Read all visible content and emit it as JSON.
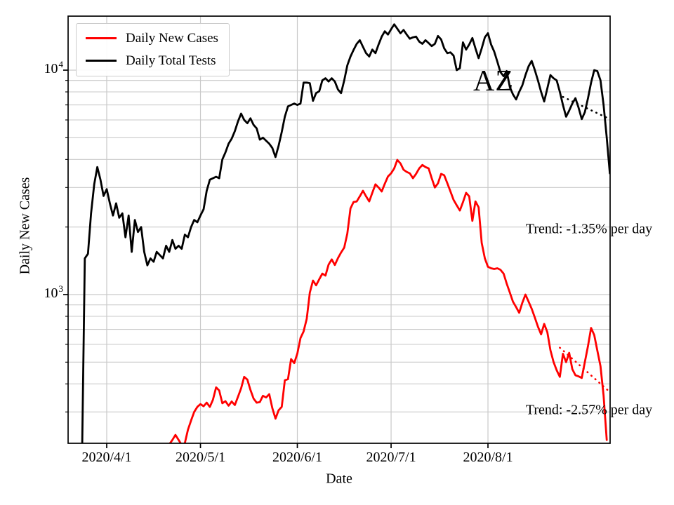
{
  "chart_data": {
    "type": "line",
    "title": "",
    "xlabel": "Date",
    "ylabel": "Daily New Cases",
    "yscale": "log",
    "ylim": [
      217,
      17400
    ],
    "xlim": [
      "2020/3/19",
      "2020/9/9"
    ],
    "grid": true,
    "legend_position": "upper-left",
    "x_ticks": [
      "2020/4/1",
      "2020/5/1",
      "2020/6/1",
      "2020/7/1",
      "2020/8/1"
    ],
    "y_ticks": [
      {
        "base": "10",
        "exp": "4",
        "value": 10000
      },
      {
        "base": "10",
        "exp": "3",
        "value": 1000
      }
    ],
    "series": [
      {
        "name": "Daily New Cases",
        "color": "#ff0000",
        "start": "2020/4/20",
        "values": [
          210,
          215,
          225,
          237,
          225,
          214,
          218,
          250,
          275,
          300,
          316,
          325,
          318,
          330,
          316,
          340,
          386,
          374,
          328,
          335,
          320,
          334,
          322,
          350,
          382,
          430,
          418,
          376,
          344,
          330,
          332,
          354,
          348,
          360,
          312,
          280,
          305,
          316,
          415,
          420,
          516,
          495,
          546,
          640,
          685,
          780,
          1020,
          1155,
          1100,
          1170,
          1240,
          1215,
          1360,
          1435,
          1355,
          1455,
          1540,
          1620,
          1870,
          2420,
          2585,
          2600,
          2740,
          2900,
          2740,
          2600,
          2840,
          3100,
          3000,
          2880,
          3120,
          3360,
          3470,
          3650,
          3980,
          3840,
          3600,
          3520,
          3470,
          3300,
          3450,
          3650,
          3780,
          3700,
          3650,
          3300,
          3000,
          3130,
          3450,
          3400,
          3130,
          2880,
          2640,
          2500,
          2370,
          2580,
          2840,
          2740,
          2130,
          2600,
          2450,
          1700,
          1450,
          1330,
          1310,
          1300,
          1310,
          1290,
          1240,
          1120,
          1020,
          930,
          880,
          830,
          920,
          1000,
          930,
          865,
          790,
          720,
          665,
          740,
          680,
          565,
          500,
          460,
          430,
          545,
          500,
          550,
          465,
          437,
          432,
          425,
          500,
          590,
          710,
          660,
          563,
          480,
          355,
          225
        ]
      },
      {
        "name": "Daily Total Tests",
        "color": "#000000",
        "start": "2020/3/24",
        "values": [
          150,
          1450,
          1520,
          2300,
          3100,
          3700,
          3250,
          2750,
          2950,
          2550,
          2250,
          2550,
          2200,
          2300,
          1800,
          2250,
          1550,
          2150,
          1900,
          2000,
          1550,
          1350,
          1450,
          1400,
          1550,
          1500,
          1450,
          1650,
          1550,
          1750,
          1600,
          1650,
          1600,
          1850,
          1800,
          2000,
          2150,
          2100,
          2250,
          2400,
          2900,
          3250,
          3300,
          3350,
          3300,
          4000,
          4300,
          4700,
          4950,
          5350,
          5900,
          6400,
          6000,
          5800,
          6100,
          5700,
          5500,
          4900,
          5000,
          4850,
          4700,
          4500,
          4100,
          4600,
          5300,
          6200,
          6900,
          7000,
          7100,
          7000,
          7100,
          8800,
          8800,
          8750,
          7300,
          7900,
          8050,
          9000,
          9200,
          8900,
          9200,
          8900,
          8200,
          7900,
          9000,
          10500,
          11500,
          12300,
          13100,
          13600,
          12700,
          11900,
          11500,
          12350,
          11900,
          13000,
          14100,
          14900,
          14400,
          15200,
          16000,
          15300,
          14600,
          15100,
          14400,
          13800,
          14000,
          14100,
          13400,
          13100,
          13600,
          13200,
          12800,
          13100,
          14200,
          13700,
          12500,
          11900,
          12000,
          11600,
          10000,
          10200,
          13300,
          12350,
          13000,
          13900,
          12500,
          11300,
          12500,
          14000,
          14600,
          13000,
          12100,
          10900,
          9800,
          9400,
          9900,
          8400,
          7800,
          7400,
          8000,
          8560,
          9500,
          10400,
          11000,
          10000,
          9000,
          8000,
          7250,
          8300,
          9500,
          9200,
          9000,
          8000,
          7000,
          6200,
          6600,
          7100,
          7500,
          6800,
          6050,
          6500,
          7500,
          8800,
          10000,
          9900,
          9000,
          7000,
          5000,
          3470
        ]
      }
    ],
    "trend_lines": [
      {
        "series": "Daily Total Tests",
        "color": "#000000",
        "label": "Trend: -1.35% per day",
        "start": "2020/8/25",
        "start_value": 7600,
        "end": "2020/9/9",
        "end_value": 6050
      },
      {
        "series": "Daily New Cases",
        "color": "#ff0000",
        "label": "Trend: -2.57% per day",
        "start": "2020/8/24",
        "start_value": 580,
        "end": "2020/9/9",
        "end_value": 368
      }
    ],
    "annotations": [
      {
        "text": "AZ"
      }
    ]
  }
}
